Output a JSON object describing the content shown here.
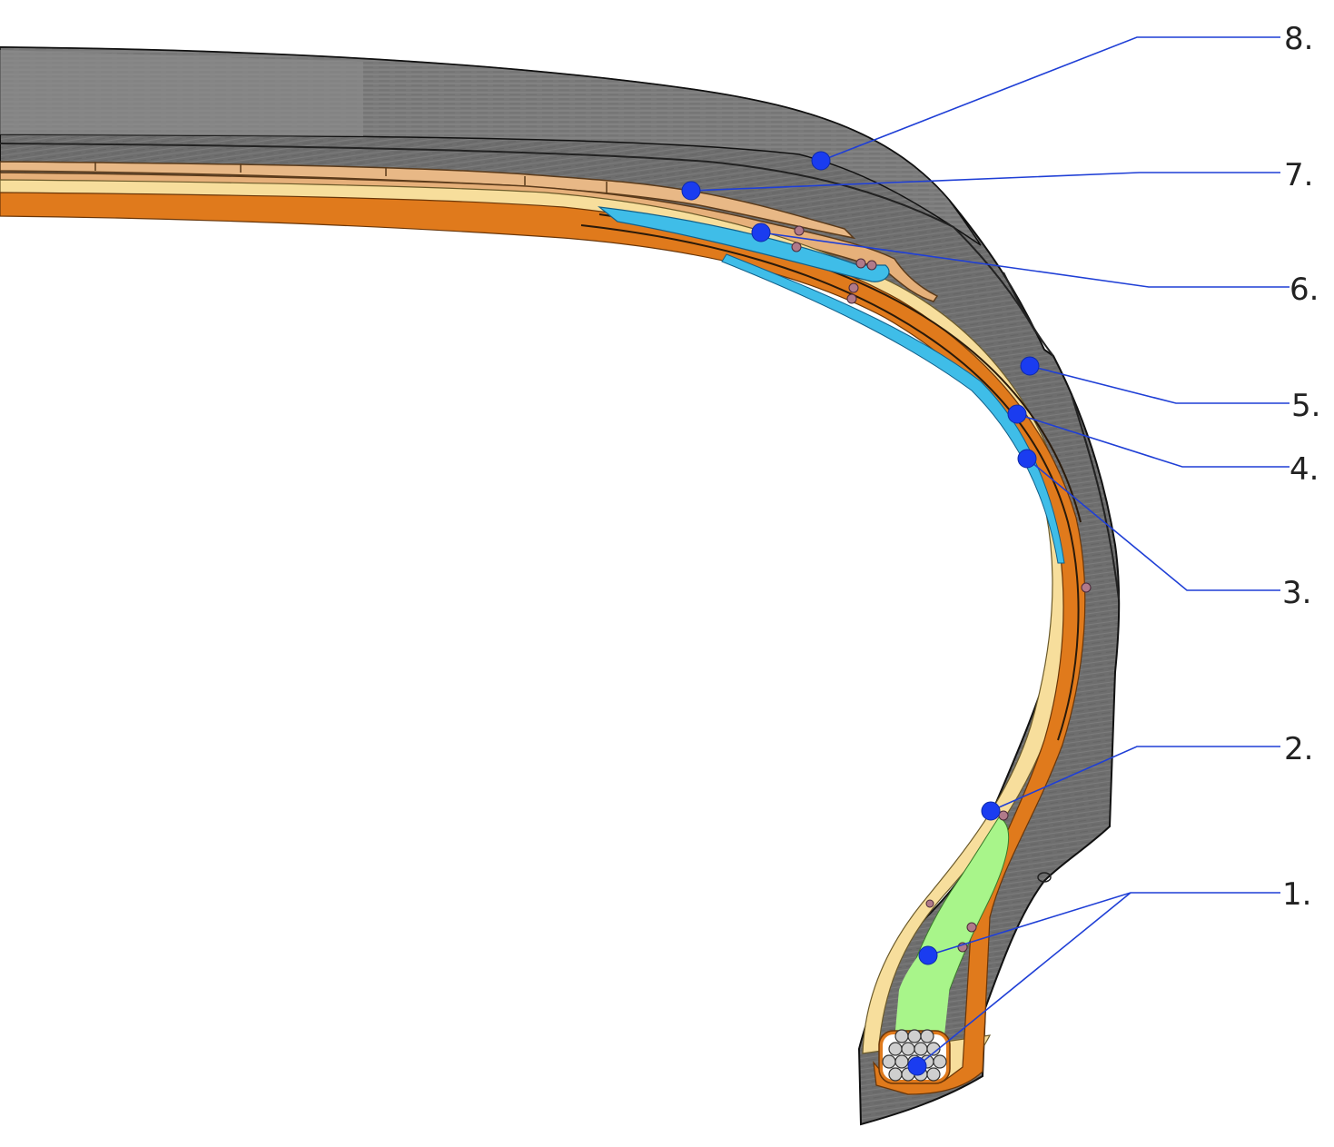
{
  "callouts": [
    {
      "id": "1",
      "text": "1."
    },
    {
      "id": "2",
      "text": "2."
    },
    {
      "id": "3",
      "text": "3."
    },
    {
      "id": "4",
      "text": "4."
    },
    {
      "id": "5",
      "text": "5."
    },
    {
      "id": "6",
      "text": "6."
    },
    {
      "id": "7",
      "text": "7."
    },
    {
      "id": "8",
      "text": "8."
    }
  ],
  "colors": {
    "rubber": "#6b6b6b",
    "rubber_light": "#8a8a8a",
    "inner_liner": "#f6dd9a",
    "carcass": "#e07a1c",
    "belt": "#e7b888",
    "cap_ply": "#3fbde8",
    "bead_filler": "#a8f58a",
    "bead_wire": "#c8c8c8",
    "leader": "#1f3fd6",
    "dot": "#1a3cf0"
  }
}
